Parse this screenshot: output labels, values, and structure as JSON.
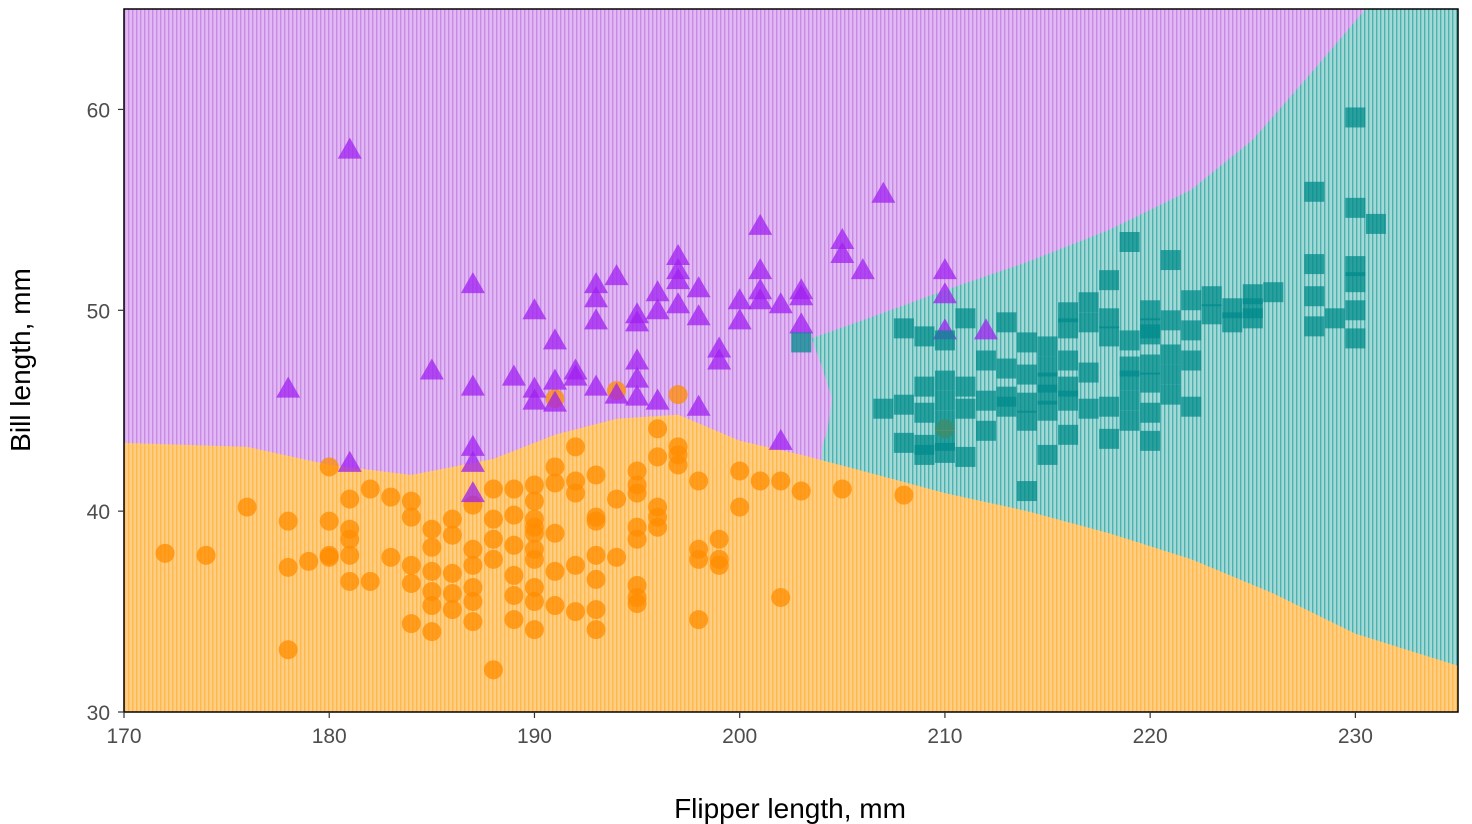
{
  "chart_data": {
    "type": "scatter",
    "title": "",
    "xlabel": "Flipper length, mm",
    "ylabel": "Bill length, mm",
    "xlim": [
      170,
      235
    ],
    "ylim": [
      30,
      65
    ],
    "xticks": [
      170,
      180,
      190,
      200,
      210,
      220,
      230
    ],
    "yticks": [
      30,
      40,
      50,
      60
    ],
    "grid": false,
    "legend": "none",
    "regions": [
      {
        "class": "orange",
        "color": "#ffc46b",
        "boundary_upper": [
          [
            170,
            43.4
          ],
          [
            176,
            43.2
          ],
          [
            180,
            42.3
          ],
          [
            184,
            41.8
          ],
          [
            188,
            42.6
          ],
          [
            191,
            43.8
          ],
          [
            194,
            44.6
          ],
          [
            197,
            44.8
          ],
          [
            200,
            43.5
          ],
          [
            203,
            42.8
          ],
          [
            206,
            42.0
          ],
          [
            210,
            40.9
          ],
          [
            214,
            40.0
          ],
          [
            218,
            38.9
          ],
          [
            222,
            37.6
          ],
          [
            226,
            35.9
          ],
          [
            230,
            33.9
          ],
          [
            235,
            32.3
          ]
        ]
      },
      {
        "class": "teal",
        "color": "#7dc9c6",
        "boundary_left": [
          [
            203.5,
            48.6
          ],
          [
            206,
            49.5
          ],
          [
            210,
            51.0
          ],
          [
            214,
            52.4
          ],
          [
            218,
            54.0
          ],
          [
            222,
            56.0
          ],
          [
            225,
            58.5
          ],
          [
            228,
            62.0
          ],
          [
            230.5,
            65.0
          ]
        ],
        "boundary_lower": [
          [
            203.5,
            48.6
          ],
          [
            204,
            47.2
          ],
          [
            204.5,
            45.6
          ],
          [
            204.3,
            44.2
          ],
          [
            204,
            43.1
          ]
        ]
      },
      {
        "class": "purple",
        "color": "#d8a1ef"
      }
    ],
    "series": [
      {
        "marker": "circle",
        "color": "#ff8c00",
        "points": [
          [
            172,
            37.9
          ],
          [
            174,
            37.8
          ],
          [
            176,
            40.2
          ],
          [
            178,
            39.5
          ],
          [
            178,
            37.2
          ],
          [
            178,
            33.1
          ],
          [
            179,
            37.5
          ],
          [
            180,
            42.2
          ],
          [
            180,
            39.5
          ],
          [
            180,
            37.8
          ],
          [
            180,
            37.7
          ],
          [
            181,
            40.6
          ],
          [
            181,
            39.1
          ],
          [
            181,
            38.6
          ],
          [
            181,
            37.8
          ],
          [
            181,
            36.5
          ],
          [
            182,
            41.1
          ],
          [
            182,
            36.5
          ],
          [
            183,
            40.7
          ],
          [
            183,
            37.7
          ],
          [
            184,
            40.5
          ],
          [
            184,
            39.7
          ],
          [
            184,
            37.3
          ],
          [
            184,
            36.4
          ],
          [
            184,
            34.4
          ],
          [
            185,
            39.1
          ],
          [
            185,
            38.2
          ],
          [
            185,
            37.0
          ],
          [
            185,
            36.0
          ],
          [
            185,
            35.3
          ],
          [
            185,
            34.0
          ],
          [
            186,
            39.6
          ],
          [
            186,
            38.8
          ],
          [
            186,
            36.9
          ],
          [
            186,
            35.9
          ],
          [
            186,
            35.1
          ],
          [
            187,
            40.3
          ],
          [
            187,
            38.1
          ],
          [
            187,
            37.3
          ],
          [
            187,
            36.2
          ],
          [
            187,
            35.5
          ],
          [
            187,
            34.5
          ],
          [
            188,
            41.1
          ],
          [
            188,
            39.6
          ],
          [
            188,
            38.6
          ],
          [
            188,
            37.6
          ],
          [
            188,
            32.1
          ],
          [
            189,
            41.1
          ],
          [
            189,
            39.8
          ],
          [
            189,
            38.3
          ],
          [
            189,
            36.8
          ],
          [
            189,
            35.8
          ],
          [
            189,
            34.6
          ],
          [
            190,
            41.3
          ],
          [
            190,
            40.5
          ],
          [
            190,
            39.6
          ],
          [
            190,
            39.2
          ],
          [
            190,
            38.9
          ],
          [
            190,
            38.1
          ],
          [
            190,
            37.6
          ],
          [
            190,
            36.2
          ],
          [
            190,
            35.5
          ],
          [
            190,
            34.1
          ],
          [
            191,
            42.2
          ],
          [
            191,
            41.4
          ],
          [
            191,
            38.9
          ],
          [
            191,
            37.0
          ],
          [
            191,
            35.3
          ],
          [
            191,
            45.6
          ],
          [
            192,
            43.2
          ],
          [
            192,
            41.5
          ],
          [
            192,
            40.9
          ],
          [
            192,
            37.3
          ],
          [
            192,
            35.0
          ],
          [
            193,
            41.8
          ],
          [
            193,
            39.7
          ],
          [
            193,
            39.5
          ],
          [
            193,
            37.8
          ],
          [
            193,
            36.6
          ],
          [
            193,
            35.1
          ],
          [
            193,
            34.1
          ],
          [
            194,
            40.6
          ],
          [
            194,
            37.7
          ],
          [
            194,
            46.0
          ],
          [
            195,
            42.0
          ],
          [
            195,
            41.3
          ],
          [
            195,
            40.9
          ],
          [
            195,
            39.2
          ],
          [
            195,
            38.6
          ],
          [
            195,
            36.3
          ],
          [
            195,
            35.7
          ],
          [
            195,
            35.4
          ],
          [
            196,
            44.1
          ],
          [
            196,
            42.7
          ],
          [
            196,
            40.2
          ],
          [
            196,
            39.7
          ],
          [
            196,
            39.2
          ],
          [
            197,
            45.8
          ],
          [
            197,
            43.2
          ],
          [
            197,
            42.3
          ],
          [
            197,
            42.8
          ],
          [
            198,
            41.5
          ],
          [
            198,
            38.1
          ],
          [
            198,
            37.6
          ],
          [
            198,
            34.6
          ],
          [
            199,
            38.6
          ],
          [
            199,
            37.6
          ],
          [
            199,
            37.3
          ],
          [
            200,
            42.0
          ],
          [
            200,
            40.2
          ],
          [
            201,
            41.5
          ],
          [
            202,
            41.5
          ],
          [
            202,
            35.7
          ],
          [
            203,
            41.0
          ],
          [
            205,
            41.1
          ],
          [
            208,
            40.8
          ],
          [
            210,
            44.1
          ]
        ]
      },
      {
        "marker": "triangle",
        "color": "#a020f0",
        "points": [
          [
            178,
            46.1
          ],
          [
            181,
            58.0
          ],
          [
            181,
            42.4
          ],
          [
            185,
            47.0
          ],
          [
            187,
            51.3
          ],
          [
            187,
            46.2
          ],
          [
            187,
            43.2
          ],
          [
            187,
            42.4
          ],
          [
            187,
            40.9
          ],
          [
            189,
            46.7
          ],
          [
            190,
            50.0
          ],
          [
            190,
            46.1
          ],
          [
            190,
            45.5
          ],
          [
            191,
            48.5
          ],
          [
            191,
            46.5
          ],
          [
            191,
            45.4
          ],
          [
            192,
            47.0
          ],
          [
            192,
            46.7
          ],
          [
            193,
            51.3
          ],
          [
            193,
            50.6
          ],
          [
            193,
            49.5
          ],
          [
            193,
            46.2
          ],
          [
            194,
            51.7
          ],
          [
            194,
            45.8
          ],
          [
            195,
            49.8
          ],
          [
            195,
            49.4
          ],
          [
            195,
            47.5
          ],
          [
            195,
            46.6
          ],
          [
            195,
            45.7
          ],
          [
            196,
            50.9
          ],
          [
            196,
            50.0
          ],
          [
            196,
            45.5
          ],
          [
            197,
            52.7
          ],
          [
            197,
            52.0
          ],
          [
            197,
            51.5
          ],
          [
            197,
            50.3
          ],
          [
            198,
            51.1
          ],
          [
            198,
            49.7
          ],
          [
            198,
            45.2
          ],
          [
            199,
            48.1
          ],
          [
            199,
            47.5
          ],
          [
            200,
            50.5
          ],
          [
            200,
            49.5
          ],
          [
            201,
            54.2
          ],
          [
            201,
            52.0
          ],
          [
            201,
            51.0
          ],
          [
            201,
            50.5
          ],
          [
            202,
            50.3
          ],
          [
            202,
            43.5
          ],
          [
            203,
            51.0
          ],
          [
            203,
            50.7
          ],
          [
            203,
            49.3
          ],
          [
            205,
            53.5
          ],
          [
            205,
            52.8
          ],
          [
            206,
            52.0
          ],
          [
            207,
            55.8
          ],
          [
            210,
            52.0
          ],
          [
            210,
            50.8
          ],
          [
            210,
            49.0
          ],
          [
            212,
            49.0
          ]
        ]
      },
      {
        "marker": "square",
        "color": "#008b8b",
        "points": [
          [
            203,
            48.4
          ],
          [
            207,
            45.1
          ],
          [
            208,
            49.1
          ],
          [
            208,
            45.3
          ],
          [
            208,
            43.4
          ],
          [
            209,
            48.7
          ],
          [
            209,
            46.2
          ],
          [
            209,
            44.9
          ],
          [
            209,
            43.3
          ],
          [
            209,
            42.8
          ],
          [
            210,
            48.5
          ],
          [
            210,
            46.5
          ],
          [
            210,
            45.5
          ],
          [
            210,
            44.5
          ],
          [
            210,
            43.5
          ],
          [
            210,
            42.9
          ],
          [
            211,
            49.6
          ],
          [
            211,
            46.2
          ],
          [
            211,
            45.1
          ],
          [
            211,
            42.7
          ],
          [
            212,
            47.5
          ],
          [
            212,
            45.5
          ],
          [
            212,
            44.0
          ],
          [
            213,
            49.4
          ],
          [
            213,
            47.1
          ],
          [
            213,
            45.7
          ],
          [
            213,
            45.2
          ],
          [
            214,
            48.4
          ],
          [
            214,
            46.8
          ],
          [
            214,
            45.4
          ],
          [
            214,
            44.5
          ],
          [
            214,
            41.0
          ],
          [
            215,
            48.2
          ],
          [
            215,
            47.2
          ],
          [
            215,
            46.4
          ],
          [
            215,
            45.8
          ],
          [
            215,
            45.0
          ],
          [
            215,
            42.8
          ],
          [
            216,
            49.9
          ],
          [
            216,
            49.1
          ],
          [
            216,
            47.5
          ],
          [
            216,
            46.2
          ],
          [
            216,
            45.5
          ],
          [
            216,
            43.8
          ],
          [
            217,
            50.4
          ],
          [
            217,
            49.4
          ],
          [
            217,
            46.9
          ],
          [
            217,
            45.1
          ],
          [
            218,
            51.5
          ],
          [
            218,
            49.6
          ],
          [
            218,
            48.7
          ],
          [
            218,
            45.2
          ],
          [
            218,
            43.6
          ],
          [
            219,
            53.4
          ],
          [
            219,
            48.5
          ],
          [
            219,
            47.2
          ],
          [
            219,
            46.5
          ],
          [
            219,
            45.5
          ],
          [
            219,
            44.5
          ],
          [
            220,
            50.0
          ],
          [
            220,
            49.1
          ],
          [
            220,
            48.8
          ],
          [
            220,
            47.3
          ],
          [
            220,
            46.4
          ],
          [
            220,
            44.9
          ],
          [
            220,
            43.5
          ],
          [
            221,
            52.5
          ],
          [
            221,
            49.5
          ],
          [
            221,
            47.8
          ],
          [
            221,
            46.8
          ],
          [
            221,
            45.8
          ],
          [
            222,
            50.5
          ],
          [
            222,
            49.0
          ],
          [
            222,
            47.5
          ],
          [
            222,
            45.2
          ],
          [
            223,
            50.7
          ],
          [
            223,
            49.8
          ],
          [
            224,
            50.1
          ],
          [
            224,
            49.4
          ],
          [
            225,
            50.8
          ],
          [
            225,
            50.1
          ],
          [
            225,
            49.6
          ],
          [
            226,
            50.9
          ],
          [
            228,
            55.9
          ],
          [
            228,
            52.3
          ],
          [
            228,
            50.7
          ],
          [
            228,
            49.2
          ],
          [
            229,
            49.6
          ],
          [
            230,
            59.6
          ],
          [
            230,
            55.1
          ],
          [
            230,
            52.2
          ],
          [
            230,
            51.4
          ],
          [
            230,
            50.0
          ],
          [
            230,
            48.6
          ],
          [
            231,
            54.3
          ]
        ]
      }
    ]
  }
}
